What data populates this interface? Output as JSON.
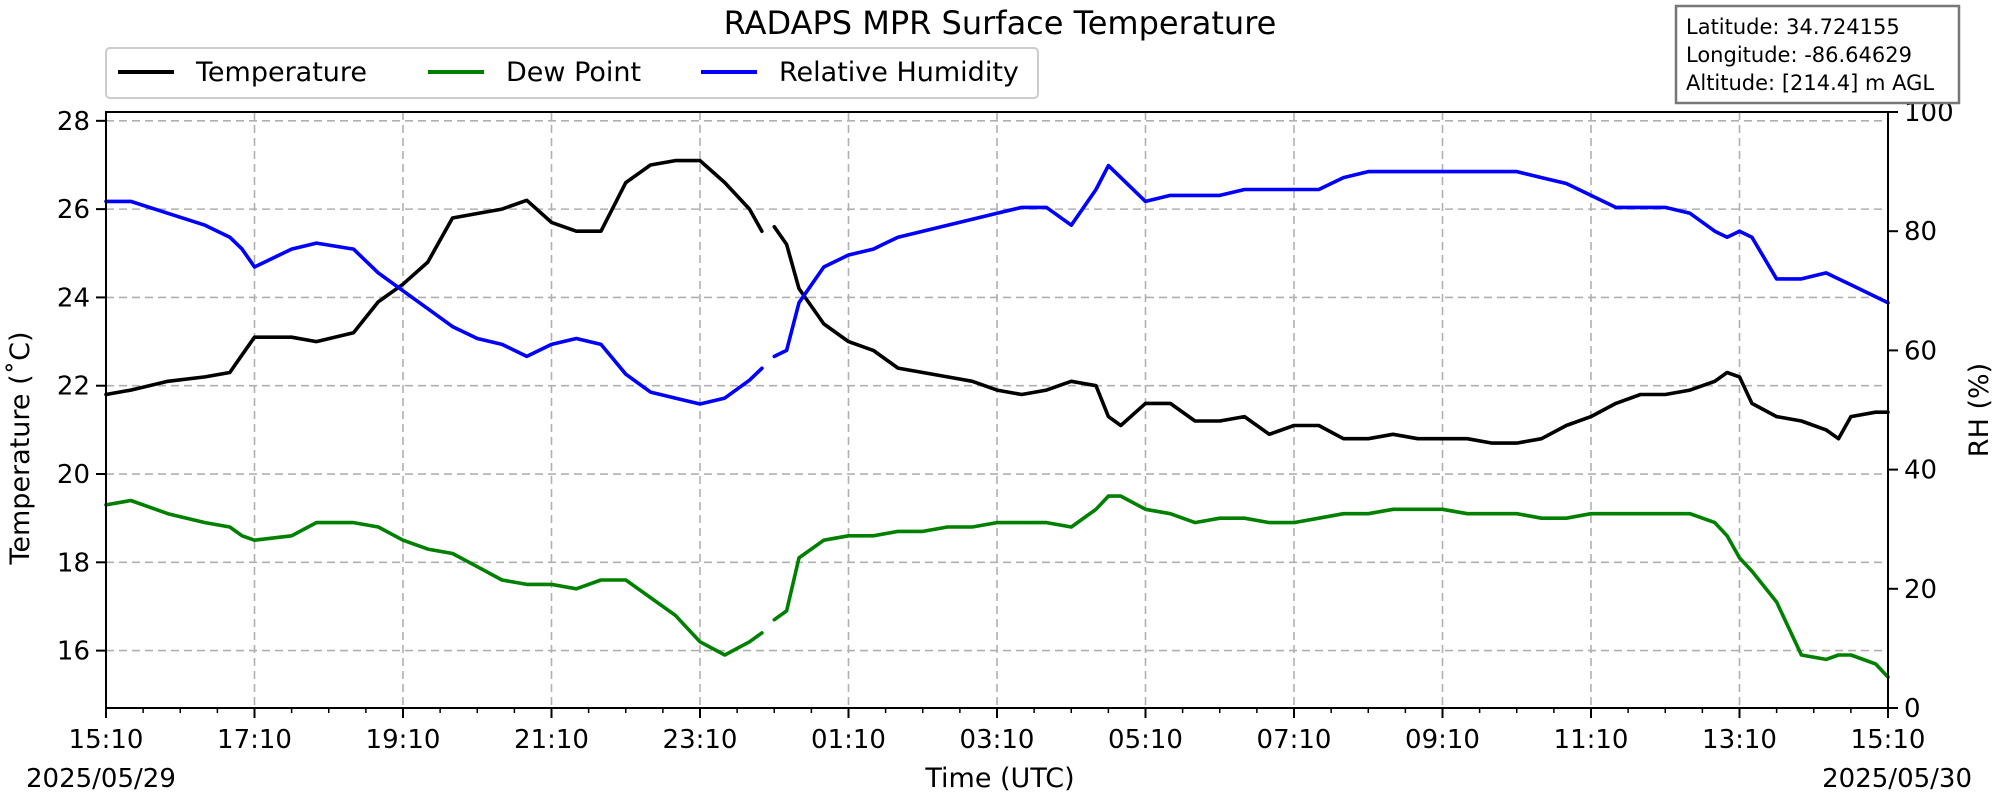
{
  "chart_data": {
    "type": "line",
    "title": "RADAPS MPR Surface Temperature",
    "xlabel": "Time (UTC)",
    "ylabel": "Temperature (˚C)",
    "y2label": "RH (%)",
    "x_start_date": "2025/05/29",
    "x_end_date": "2025/05/30",
    "x_ticks": [
      "15:10",
      "17:10",
      "19:10",
      "21:10",
      "23:10",
      "01:10",
      "03:10",
      "05:10",
      "07:10",
      "09:10",
      "11:10",
      "13:10",
      "15:10"
    ],
    "xlim": [
      "2025-05-29 15:10",
      "2025-05-30 15:10"
    ],
    "ylim": [
      14.7,
      28.2
    ],
    "y_ticks": [
      16,
      18,
      20,
      22,
      24,
      26,
      28
    ],
    "y2lim": [
      0,
      100
    ],
    "y2_ticks": [
      0,
      20,
      40,
      60,
      80,
      100
    ],
    "grid": true,
    "legend_position": "top-left",
    "station_info": [
      "Latitude: 34.724155",
      "Longitude: -86.64629",
      "Altitude: [214.4] m AGL"
    ],
    "series": [
      {
        "name": "Temperature",
        "axis": "left",
        "color": "#000000",
        "points": [
          [
            "05/29 15:10",
            21.8
          ],
          [
            "05/29 15:30",
            21.9
          ],
          [
            "05/29 16:00",
            22.1
          ],
          [
            "05/29 16:30",
            22.2
          ],
          [
            "05/29 16:50",
            22.3
          ],
          [
            "05/29 17:00",
            22.7
          ],
          [
            "05/29 17:10",
            23.1
          ],
          [
            "05/29 17:40",
            23.1
          ],
          [
            "05/29 18:00",
            23.0
          ],
          [
            "05/29 18:30",
            23.2
          ],
          [
            "05/29 18:50",
            23.9
          ],
          [
            "05/29 19:10",
            24.3
          ],
          [
            "05/29 19:30",
            24.8
          ],
          [
            "05/29 19:50",
            25.8
          ],
          [
            "05/29 20:10",
            25.9
          ],
          [
            "05/29 20:30",
            26.0
          ],
          [
            "05/29 20:50",
            26.2
          ],
          [
            "05/29 21:10",
            25.7
          ],
          [
            "05/29 21:30",
            25.5
          ],
          [
            "05/29 21:50",
            25.5
          ],
          [
            "05/29 22:10",
            26.6
          ],
          [
            "05/29 22:30",
            27.0
          ],
          [
            "05/29 22:50",
            27.1
          ],
          [
            "05/29 23:10",
            27.1
          ],
          [
            "05/29 23:30",
            26.6
          ],
          [
            "05/29 23:50",
            26.0
          ],
          [
            "05/30 00:00",
            25.5
          ],
          null,
          [
            "05/30 00:10",
            25.6
          ],
          [
            "05/30 00:20",
            25.2
          ],
          [
            "05/30 00:30",
            24.2
          ],
          [
            "05/30 00:50",
            23.4
          ],
          [
            "05/30 01:10",
            23.0
          ],
          [
            "05/30 01:30",
            22.8
          ],
          [
            "05/30 01:50",
            22.4
          ],
          [
            "05/30 02:10",
            22.3
          ],
          [
            "05/30 02:30",
            22.2
          ],
          [
            "05/30 02:50",
            22.1
          ],
          [
            "05/30 03:10",
            21.9
          ],
          [
            "05/30 03:30",
            21.8
          ],
          [
            "05/30 03:50",
            21.9
          ],
          [
            "05/30 04:10",
            22.1
          ],
          [
            "05/30 04:30",
            22.0
          ],
          [
            "05/30 04:40",
            21.3
          ],
          [
            "05/30 04:50",
            21.1
          ],
          [
            "05/30 05:10",
            21.6
          ],
          [
            "05/30 05:30",
            21.6
          ],
          [
            "05/30 05:50",
            21.2
          ],
          [
            "05/30 06:10",
            21.2
          ],
          [
            "05/30 06:30",
            21.3
          ],
          [
            "05/30 06:50",
            20.9
          ],
          [
            "05/30 07:10",
            21.1
          ],
          [
            "05/30 07:30",
            21.1
          ],
          [
            "05/30 07:50",
            20.8
          ],
          [
            "05/30 08:10",
            20.8
          ],
          [
            "05/30 08:30",
            20.9
          ],
          [
            "05/30 08:50",
            20.8
          ],
          [
            "05/30 09:10",
            20.8
          ],
          [
            "05/30 09:30",
            20.8
          ],
          [
            "05/30 09:50",
            20.7
          ],
          [
            "05/30 10:10",
            20.7
          ],
          [
            "05/30 10:30",
            20.8
          ],
          [
            "05/30 10:50",
            21.1
          ],
          [
            "05/30 11:10",
            21.3
          ],
          [
            "05/30 11:30",
            21.6
          ],
          [
            "05/30 11:50",
            21.8
          ],
          [
            "05/30 12:10",
            21.8
          ],
          [
            "05/30 12:30",
            21.9
          ],
          [
            "05/30 12:50",
            22.1
          ],
          [
            "05/30 13:00",
            22.3
          ],
          [
            "05/30 13:10",
            22.2
          ],
          [
            "05/30 13:20",
            21.6
          ],
          [
            "05/30 13:40",
            21.3
          ],
          [
            "05/30 14:00",
            21.2
          ],
          [
            "05/30 14:20",
            21.0
          ],
          [
            "05/30 14:30",
            20.8
          ],
          [
            "05/30 14:40",
            21.3
          ],
          [
            "05/30 15:00",
            21.4
          ],
          [
            "05/30 15:10",
            21.4
          ]
        ]
      },
      {
        "name": "Dew Point",
        "axis": "left",
        "color": "#008000",
        "points": [
          [
            "05/29 15:10",
            19.3
          ],
          [
            "05/29 15:30",
            19.4
          ],
          [
            "05/29 16:00",
            19.1
          ],
          [
            "05/29 16:30",
            18.9
          ],
          [
            "05/29 16:50",
            18.8
          ],
          [
            "05/29 17:00",
            18.6
          ],
          [
            "05/29 17:10",
            18.5
          ],
          [
            "05/29 17:40",
            18.6
          ],
          [
            "05/29 18:00",
            18.9
          ],
          [
            "05/29 18:30",
            18.9
          ],
          [
            "05/29 18:50",
            18.8
          ],
          [
            "05/29 19:10",
            18.5
          ],
          [
            "05/29 19:30",
            18.3
          ],
          [
            "05/29 19:50",
            18.2
          ],
          [
            "05/29 20:10",
            17.9
          ],
          [
            "05/29 20:30",
            17.6
          ],
          [
            "05/29 20:50",
            17.5
          ],
          [
            "05/29 21:10",
            17.5
          ],
          [
            "05/29 21:30",
            17.4
          ],
          [
            "05/29 21:50",
            17.6
          ],
          [
            "05/29 22:10",
            17.6
          ],
          [
            "05/29 22:30",
            17.2
          ],
          [
            "05/29 22:50",
            16.8
          ],
          [
            "05/29 23:10",
            16.2
          ],
          [
            "05/29 23:30",
            15.9
          ],
          [
            "05/29 23:50",
            16.2
          ],
          [
            "05/30 00:00",
            16.4
          ],
          null,
          [
            "05/30 00:10",
            16.7
          ],
          [
            "05/30 00:20",
            16.9
          ],
          [
            "05/30 00:30",
            18.1
          ],
          [
            "05/30 00:50",
            18.5
          ],
          [
            "05/30 01:10",
            18.6
          ],
          [
            "05/30 01:30",
            18.6
          ],
          [
            "05/30 01:50",
            18.7
          ],
          [
            "05/30 02:10",
            18.7
          ],
          [
            "05/30 02:30",
            18.8
          ],
          [
            "05/30 02:50",
            18.8
          ],
          [
            "05/30 03:10",
            18.9
          ],
          [
            "05/30 03:30",
            18.9
          ],
          [
            "05/30 03:50",
            18.9
          ],
          [
            "05/30 04:10",
            18.8
          ],
          [
            "05/30 04:30",
            19.2
          ],
          [
            "05/30 04:40",
            19.5
          ],
          [
            "05/30 04:50",
            19.5
          ],
          [
            "05/30 05:10",
            19.2
          ],
          [
            "05/30 05:30",
            19.1
          ],
          [
            "05/30 05:50",
            18.9
          ],
          [
            "05/30 06:10",
            19.0
          ],
          [
            "05/30 06:30",
            19.0
          ],
          [
            "05/30 06:50",
            18.9
          ],
          [
            "05/30 07:10",
            18.9
          ],
          [
            "05/30 07:30",
            19.0
          ],
          [
            "05/30 07:50",
            19.1
          ],
          [
            "05/30 08:10",
            19.1
          ],
          [
            "05/30 08:30",
            19.2
          ],
          [
            "05/30 08:50",
            19.2
          ],
          [
            "05/30 09:10",
            19.2
          ],
          [
            "05/30 09:30",
            19.1
          ],
          [
            "05/30 09:50",
            19.1
          ],
          [
            "05/30 10:10",
            19.1
          ],
          [
            "05/30 10:30",
            19.0
          ],
          [
            "05/30 10:50",
            19.0
          ],
          [
            "05/30 11:10",
            19.1
          ],
          [
            "05/30 11:30",
            19.1
          ],
          [
            "05/30 11:50",
            19.1
          ],
          [
            "05/30 12:10",
            19.1
          ],
          [
            "05/30 12:30",
            19.1
          ],
          [
            "05/30 12:50",
            18.9
          ],
          [
            "05/30 13:00",
            18.6
          ],
          [
            "05/30 13:10",
            18.1
          ],
          [
            "05/30 13:20",
            17.8
          ],
          [
            "05/30 13:40",
            17.1
          ],
          [
            "05/30 14:00",
            15.9
          ],
          [
            "05/30 14:20",
            15.8
          ],
          [
            "05/30 14:30",
            15.9
          ],
          [
            "05/30 14:40",
            15.9
          ],
          [
            "05/30 15:00",
            15.7
          ],
          [
            "05/30 15:10",
            15.4
          ]
        ]
      },
      {
        "name": "Relative Humidity",
        "axis": "right",
        "color": "#0000ff",
        "points": [
          [
            "05/29 15:10",
            85
          ],
          [
            "05/29 15:30",
            85
          ],
          [
            "05/29 16:00",
            83
          ],
          [
            "05/29 16:30",
            81
          ],
          [
            "05/29 16:50",
            79
          ],
          [
            "05/29 17:00",
            77
          ],
          [
            "05/29 17:10",
            74
          ],
          [
            "05/29 17:40",
            77
          ],
          [
            "05/29 18:00",
            78
          ],
          [
            "05/29 18:30",
            77
          ],
          [
            "05/29 18:50",
            73
          ],
          [
            "05/29 19:10",
            70
          ],
          [
            "05/29 19:30",
            67
          ],
          [
            "05/29 19:50",
            64
          ],
          [
            "05/29 20:10",
            62
          ],
          [
            "05/29 20:30",
            61
          ],
          [
            "05/29 20:50",
            59
          ],
          [
            "05/29 21:10",
            61
          ],
          [
            "05/29 21:30",
            62
          ],
          [
            "05/29 21:50",
            61
          ],
          [
            "05/29 22:10",
            56
          ],
          [
            "05/29 22:30",
            53
          ],
          [
            "05/29 22:50",
            52
          ],
          [
            "05/29 23:10",
            51
          ],
          [
            "05/29 23:30",
            52
          ],
          [
            "05/29 23:50",
            55
          ],
          [
            "05/30 00:00",
            57
          ],
          null,
          [
            "05/30 00:10",
            59
          ],
          [
            "05/30 00:20",
            60
          ],
          [
            "05/30 00:30",
            68
          ],
          [
            "05/30 00:50",
            74
          ],
          [
            "05/30 01:10",
            76
          ],
          [
            "05/30 01:30",
            77
          ],
          [
            "05/30 01:50",
            79
          ],
          [
            "05/30 02:10",
            80
          ],
          [
            "05/30 02:30",
            81
          ],
          [
            "05/30 02:50",
            82
          ],
          [
            "05/30 03:10",
            83
          ],
          [
            "05/30 03:30",
            84
          ],
          [
            "05/30 03:50",
            84
          ],
          [
            "05/30 04:10",
            81
          ],
          [
            "05/30 04:30",
            87
          ],
          [
            "05/30 04:40",
            91
          ],
          [
            "05/30 04:50",
            89
          ],
          [
            "05/30 05:10",
            85
          ],
          [
            "05/30 05:30",
            86
          ],
          [
            "05/30 05:50",
            86
          ],
          [
            "05/30 06:10",
            86
          ],
          [
            "05/30 06:30",
            87
          ],
          [
            "05/30 06:50",
            87
          ],
          [
            "05/30 07:10",
            87
          ],
          [
            "05/30 07:30",
            87
          ],
          [
            "05/30 07:50",
            89
          ],
          [
            "05/30 08:10",
            90
          ],
          [
            "05/30 08:30",
            90
          ],
          [
            "05/30 08:50",
            90
          ],
          [
            "05/30 09:10",
            90
          ],
          [
            "05/30 09:30",
            90
          ],
          [
            "05/30 09:50",
            90
          ],
          [
            "05/30 10:10",
            90
          ],
          [
            "05/30 10:30",
            89
          ],
          [
            "05/30 10:50",
            88
          ],
          [
            "05/30 11:10",
            86
          ],
          [
            "05/30 11:30",
            84
          ],
          [
            "05/30 11:50",
            84
          ],
          [
            "05/30 12:10",
            84
          ],
          [
            "05/30 12:30",
            83
          ],
          [
            "05/30 12:50",
            80
          ],
          [
            "05/30 13:00",
            79
          ],
          [
            "05/30 13:10",
            80
          ],
          [
            "05/30 13:20",
            79
          ],
          [
            "05/30 13:40",
            72
          ],
          [
            "05/30 14:00",
            72
          ],
          [
            "05/30 14:20",
            73
          ],
          [
            "05/30 14:30",
            72
          ],
          [
            "05/30 14:40",
            71
          ],
          [
            "05/30 15:00",
            69
          ],
          [
            "05/30 15:10",
            68
          ]
        ]
      }
    ]
  }
}
